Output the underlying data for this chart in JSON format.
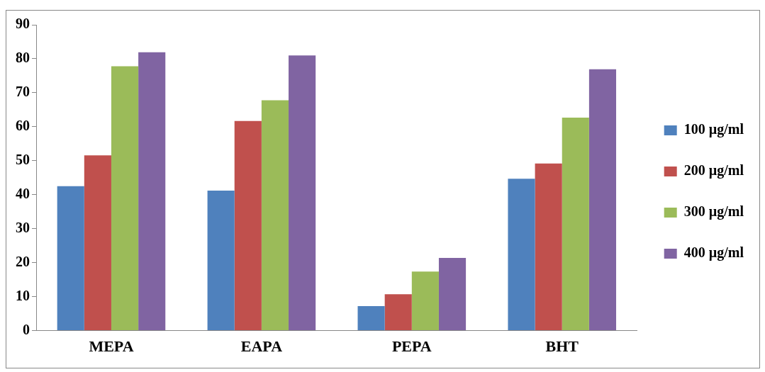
{
  "chart_data": {
    "type": "bar",
    "categories": [
      "MEPA",
      "EAPA",
      "PEPA",
      "BHT"
    ],
    "series": [
      {
        "name": "100 µg/ml",
        "color": "#4f81bd",
        "values": [
          42.5,
          41.2,
          7.2,
          44.7
        ]
      },
      {
        "name": "200 µg/ml",
        "color": "#c0504d",
        "values": [
          51.6,
          61.7,
          10.7,
          49.2
        ]
      },
      {
        "name": "300 µg/ml",
        "color": "#9bbb59",
        "values": [
          77.8,
          67.8,
          17.4,
          62.7
        ]
      },
      {
        "name": "400 µg/ml",
        "color": "#8064a2",
        "values": [
          81.9,
          81,
          21.4,
          76.9
        ]
      }
    ],
    "ylim": [
      0,
      90
    ],
    "yticks": [
      0,
      10,
      20,
      30,
      40,
      50,
      60,
      70,
      80,
      90
    ],
    "grid": false,
    "legend": "right"
  }
}
